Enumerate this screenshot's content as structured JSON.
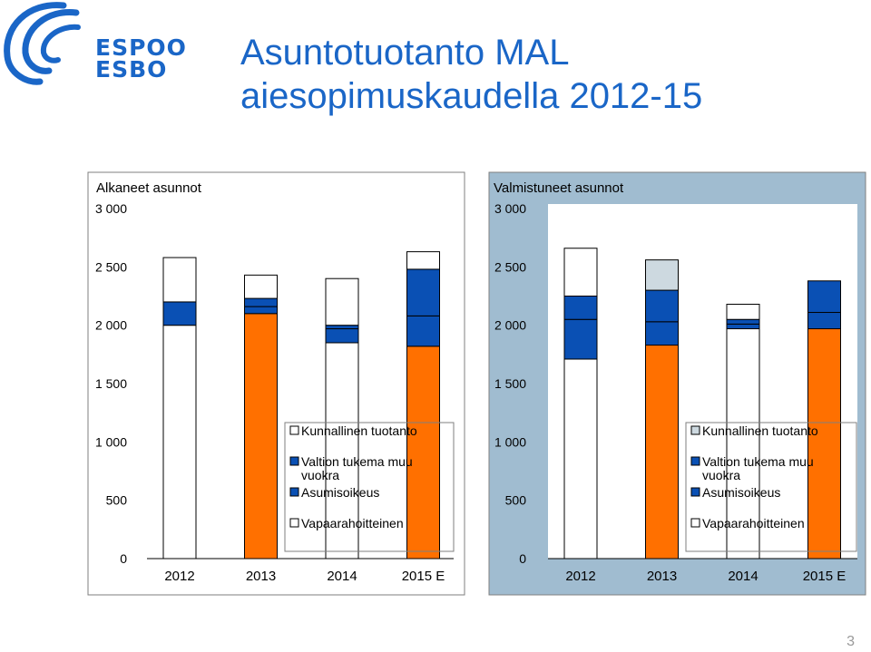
{
  "logo": {
    "line1": "ESPOO",
    "line2": "ESBO",
    "brand_color": "#1a66c7"
  },
  "title": {
    "line1": "Asuntotuotanto MAL",
    "line2": "aiesopimuskaudella 2012-15"
  },
  "page_number": "3",
  "colors": {
    "Kunnallinen tuotanto": "#ffffff",
    "Valtion tukema muu vuokra": "#0a50b4",
    "Asumisoikeus": "#0a50b4",
    "Vapaarahoitteinen": "#ffffff",
    "highlight": "#ff7000",
    "light": "#cdd9e0",
    "right_panel_bg": "#a0bcd0"
  },
  "chart_data": [
    {
      "type": "bar",
      "stacked": true,
      "title": "Alkaneet asunnot",
      "categories": [
        "2012",
        "2013",
        "2014",
        "2015 E"
      ],
      "ylim": [
        0,
        3000
      ],
      "yticks": [
        "0",
        "500",
        "1 000",
        "1 500",
        "2 000",
        "2 500",
        "3 000"
      ],
      "grid": false,
      "legend_placement": "center-right",
      "legend": [
        "Kunnallinen tuotanto",
        "Valtion tukema muu vuokra",
        "Asumisoikeus",
        "Vapaarahoitteinen"
      ],
      "series": [
        {
          "name": "Vapaarahoitteinen",
          "values": [
            2000,
            2100,
            1850,
            1820
          ]
        },
        {
          "name": "Asumisoikeus",
          "values": [
            200,
            60,
            120,
            260
          ]
        },
        {
          "name": "Valtion tukema muu vuokra",
          "values": [
            0,
            70,
            30,
            400
          ]
        },
        {
          "name": "Kunnallinen tuotanto",
          "values": [
            380,
            200,
            400,
            150
          ]
        }
      ],
      "bar_fill": [
        [
          "#ffffff",
          "#0a50b4",
          "#0a50b4",
          "#ffffff"
        ],
        [
          "#ff7000",
          "#0a50b4",
          "#0a50b4",
          "#ffffff"
        ],
        [
          "#ffffff",
          "#0a50b4",
          "#0a50b4",
          "#ffffff"
        ],
        [
          "#ff7000",
          "#0a50b4",
          "#0a50b4",
          "#ffffff"
        ]
      ]
    },
    {
      "type": "bar",
      "stacked": true,
      "title": "Valmistuneet asunnot",
      "categories": [
        "2012",
        "2013",
        "2014",
        "2015 E"
      ],
      "ylim": [
        0,
        3000
      ],
      "yticks": [
        "0",
        "500",
        "1 000",
        "1 500",
        "2 000",
        "2 500",
        "3 000"
      ],
      "grid": false,
      "legend_placement": "center-right",
      "legend": [
        "Kunnallinen tuotanto",
        "Valtion tukema muu vuokra",
        "Asumisoikeus",
        "Vapaarahoitteinen"
      ],
      "series": [
        {
          "name": "Vapaarahoitteinen",
          "values": [
            1710,
            1830,
            1970,
            1970
          ]
        },
        {
          "name": "Asumisoikeus",
          "values": [
            340,
            200,
            40,
            140
          ]
        },
        {
          "name": "Valtion tukema muu vuokra",
          "values": [
            200,
            270,
            40,
            270
          ]
        },
        {
          "name": "Kunnallinen tuotanto",
          "values": [
            410,
            260,
            130,
            0
          ]
        }
      ],
      "bar_fill": [
        [
          "#ffffff",
          "#0a50b4",
          "#0a50b4",
          "#ffffff"
        ],
        [
          "#ff7000",
          "#0a50b4",
          "#0a50b4",
          "#cdd9e0"
        ],
        [
          "#ffffff",
          "#0a50b4",
          "#0a50b4",
          "#ffffff"
        ],
        [
          "#ff7000",
          "#0a50b4",
          "#0a50b4",
          "#ffffff"
        ]
      ]
    }
  ]
}
